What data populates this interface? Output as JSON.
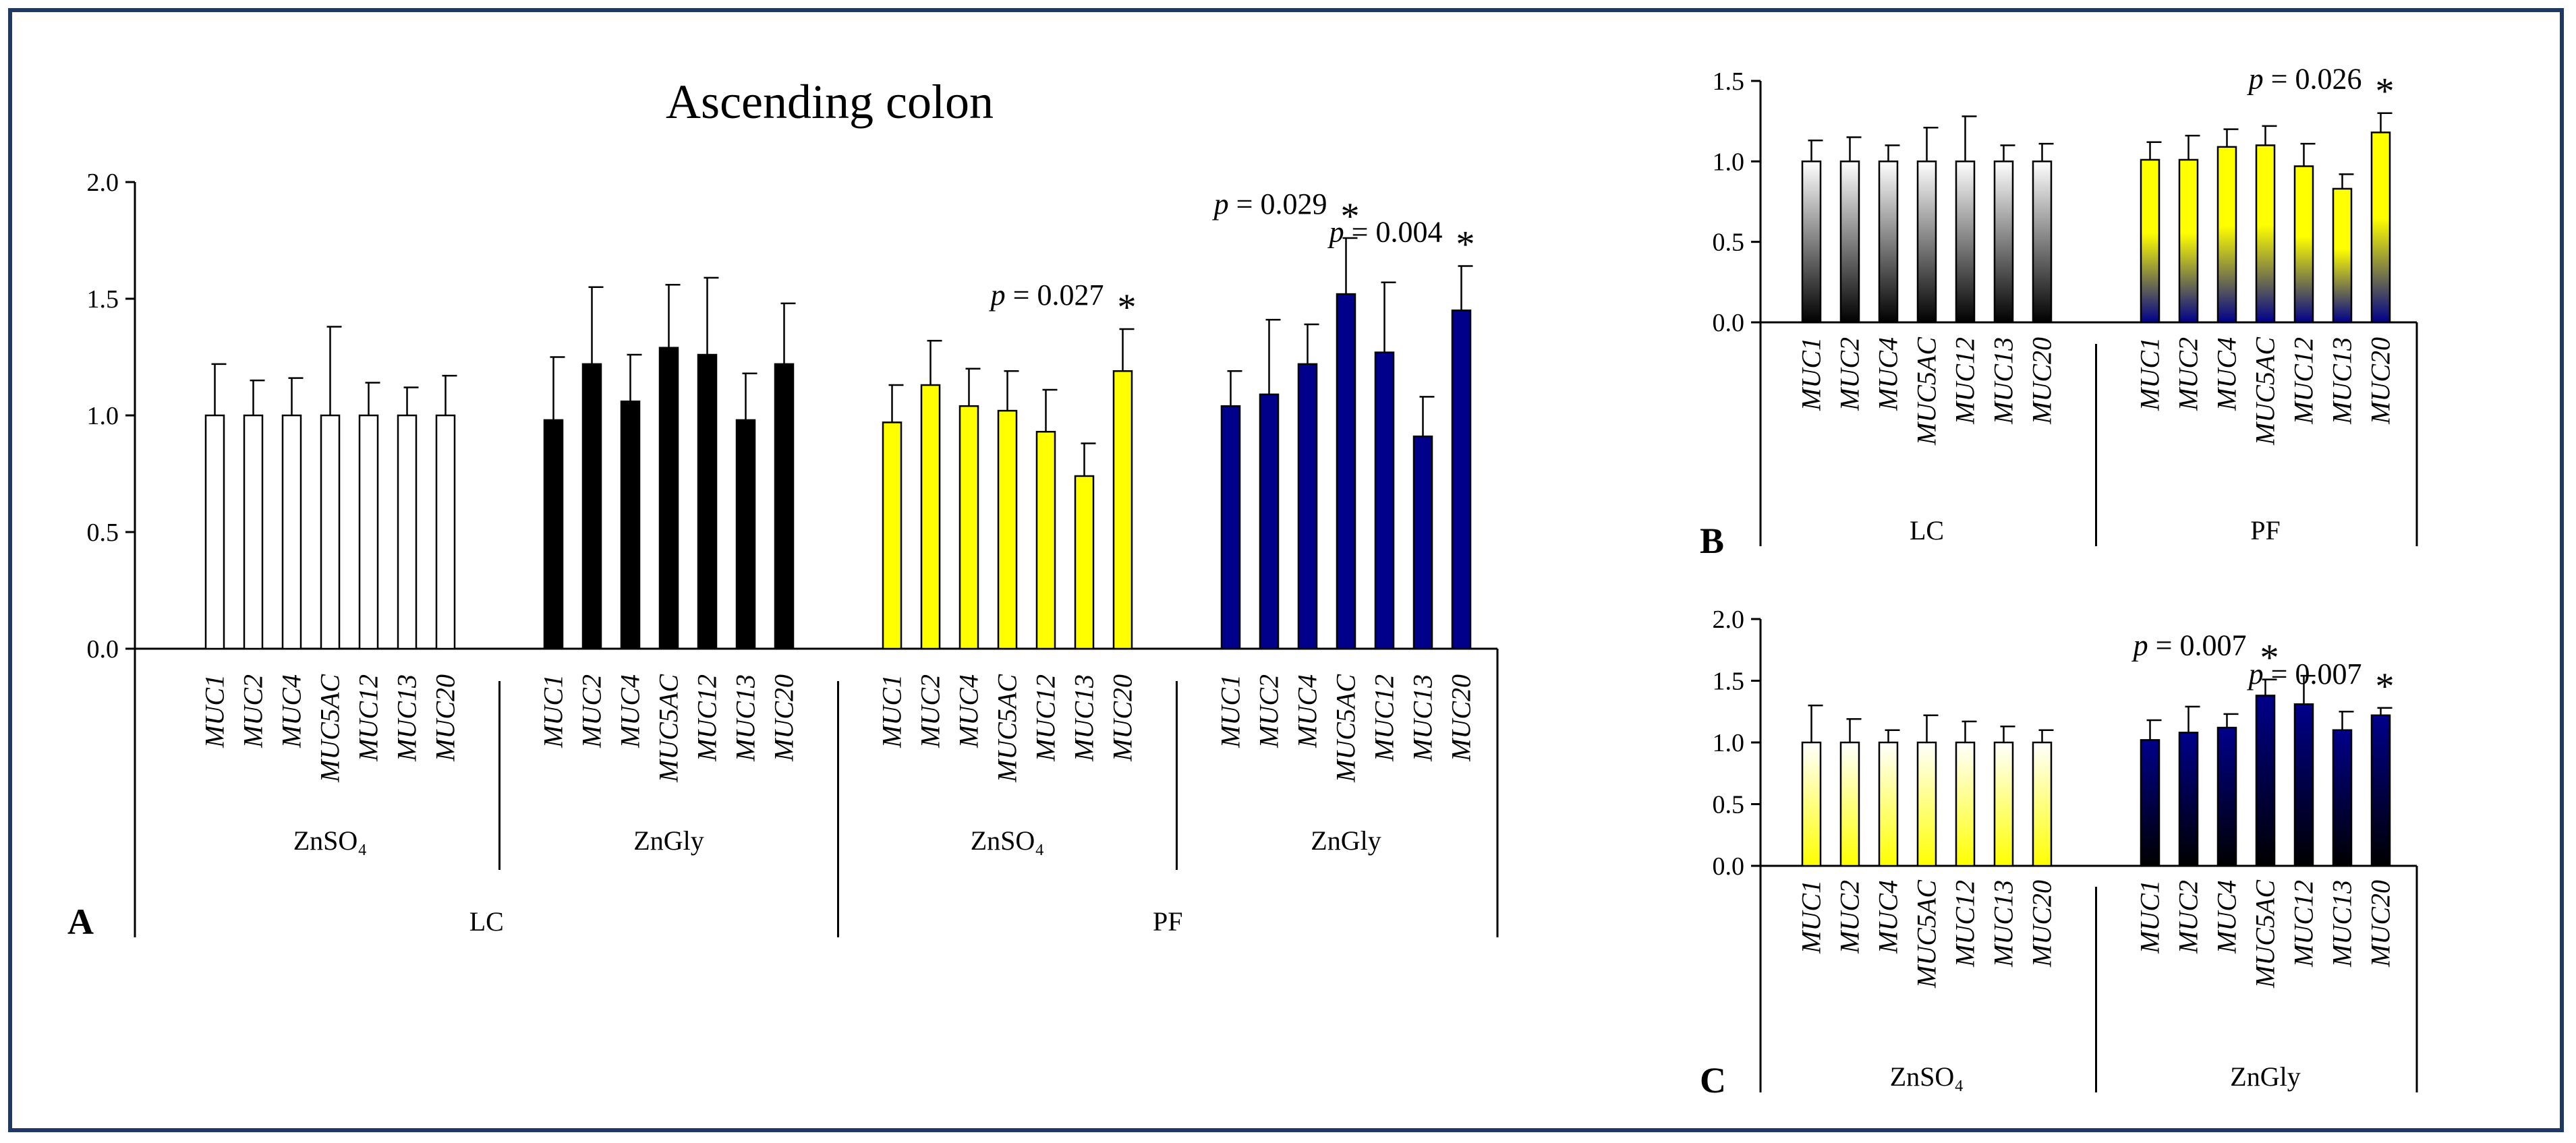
{
  "chart_data": [
    {
      "panel_label": "A",
      "type": "bar",
      "title": "Ascending colon",
      "ylim": [
        0,
        2.0
      ],
      "yticks": [
        "0.0",
        "0.5",
        "1.0",
        "1.5",
        "2.0"
      ],
      "categories": [
        "MUC1",
        "MUC2",
        "MUC4",
        "MUC5AC",
        "MUC12",
        "MUC13",
        "MUC20"
      ],
      "groups": [
        {
          "label": "ZnSO₄",
          "top": "LC",
          "color": "#ffffff",
          "values": [
            1.0,
            1.0,
            1.0,
            1.0,
            1.0,
            1.0,
            1.0
          ],
          "errors": [
            0.22,
            0.15,
            0.16,
            0.38,
            0.14,
            0.12,
            0.17
          ],
          "annotations": []
        },
        {
          "label": "ZnGly",
          "top": "LC",
          "color": "#000000",
          "values": [
            0.98,
            1.22,
            1.06,
            1.29,
            1.26,
            0.98,
            1.22
          ],
          "errors": [
            0.27,
            0.33,
            0.2,
            0.27,
            0.33,
            0.2,
            0.26
          ],
          "annotations": []
        },
        {
          "label": "ZnSO₄",
          "top": "PF",
          "color": "#ffff00",
          "values": [
            0.97,
            1.13,
            1.04,
            1.02,
            0.93,
            0.74,
            1.19
          ],
          "errors": [
            0.16,
            0.19,
            0.16,
            0.17,
            0.18,
            0.14,
            0.18
          ],
          "annotations": [
            {
              "index": 6,
              "text": "p = 0.027",
              "star": "*"
            }
          ]
        },
        {
          "label": "ZnGly",
          "top": "PF",
          "color": "#00008b",
          "values": [
            1.04,
            1.09,
            1.22,
            1.52,
            1.27,
            0.91,
            1.45
          ],
          "errors": [
            0.15,
            0.32,
            0.17,
            0.24,
            0.3,
            0.17,
            0.19
          ],
          "annotations": [
            {
              "index": 3,
              "text": "p = 0.029",
              "star": "*"
            },
            {
              "index": 6,
              "text": "p = 0.004",
              "star": "*"
            }
          ]
        }
      ],
      "top_groups": [
        "LC",
        "PF"
      ]
    },
    {
      "panel_label": "B",
      "type": "bar",
      "ylim": [
        0,
        1.5
      ],
      "yticks": [
        "0.0",
        "0.5",
        "1.0",
        "1.5"
      ],
      "categories": [
        "MUC1",
        "MUC2",
        "MUC4",
        "MUC5AC",
        "MUC12",
        "MUC13",
        "MUC20"
      ],
      "groups": [
        {
          "label": "LC",
          "gradient": [
            "#ffffff",
            "#000000"
          ],
          "values": [
            1.0,
            1.0,
            1.0,
            1.0,
            1.0,
            1.0,
            1.0
          ],
          "errors": [
            0.13,
            0.15,
            0.1,
            0.21,
            0.28,
            0.1,
            0.11
          ],
          "annotations": []
        },
        {
          "label": "PF",
          "gradient": [
            "#ffff00",
            "#00008b"
          ],
          "values": [
            1.01,
            1.01,
            1.09,
            1.1,
            0.97,
            0.83,
            1.18
          ],
          "errors": [
            0.11,
            0.15,
            0.11,
            0.12,
            0.14,
            0.09,
            0.12
          ],
          "annotations": [
            {
              "index": 6,
              "text": "p = 0.026",
              "star": "*"
            }
          ]
        }
      ]
    },
    {
      "panel_label": "C",
      "type": "bar",
      "ylim": [
        0,
        2.0
      ],
      "yticks": [
        "0.0",
        "0.5",
        "1.0",
        "1.5",
        "2.0"
      ],
      "categories": [
        "MUC1",
        "MUC2",
        "MUC4",
        "MUC5AC",
        "MUC12",
        "MUC13",
        "MUC20"
      ],
      "groups": [
        {
          "label": "ZnSO₄",
          "gradient": [
            "#ffffff",
            "#ffff00"
          ],
          "values": [
            1.0,
            1.0,
            1.0,
            1.0,
            1.0,
            1.0,
            1.0
          ],
          "errors": [
            0.3,
            0.19,
            0.1,
            0.22,
            0.17,
            0.13,
            0.1
          ],
          "annotations": []
        },
        {
          "label": "ZnGly",
          "gradient": [
            "#00008b",
            "#000000"
          ],
          "values": [
            1.02,
            1.08,
            1.12,
            1.38,
            1.31,
            1.1,
            1.22
          ],
          "errors": [
            0.16,
            0.21,
            0.11,
            0.13,
            0.23,
            0.15,
            0.06
          ],
          "annotations": [
            {
              "index": 3,
              "text": "p = 0.007",
              "star": "*"
            },
            {
              "index": 6,
              "text": "p = 0.007",
              "star": "*"
            }
          ]
        }
      ]
    }
  ]
}
